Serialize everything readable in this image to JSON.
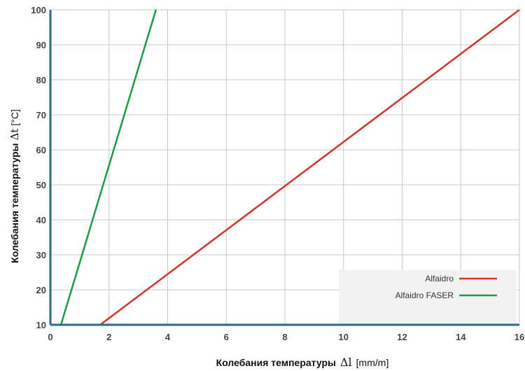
{
  "chart_data": {
    "type": "line",
    "xlabel": {
      "text": "Колебания температуры",
      "symbol": "Δl",
      "unit": "[mm/m]"
    },
    "ylabel": {
      "text": "Колебания температуры",
      "symbol": "Δt",
      "unit": "[°C]"
    },
    "xlim": [
      0,
      16
    ],
    "ylim": [
      10,
      100
    ],
    "x_ticks": [
      "0",
      "2",
      "4",
      "6",
      "8",
      "10",
      "12",
      "14",
      "16"
    ],
    "y_ticks": [
      "10",
      "20",
      "30",
      "40",
      "50",
      "60",
      "70",
      "80",
      "90",
      "100"
    ],
    "grid": true,
    "legend_position": "bottom-right",
    "series": [
      {
        "name": "Alfaidro",
        "color": "#d0342c",
        "x": [
          1.7,
          16
        ],
        "y": [
          10,
          100
        ]
      },
      {
        "name": "Alfaidro FASER",
        "color": "#1f9a47",
        "x": [
          0.36,
          3.6
        ],
        "y": [
          10,
          100
        ]
      }
    ]
  },
  "colors": {
    "axis": "#2e6b8a",
    "grid": "#c9c9c9",
    "legend_bg": "#f2f2f2"
  }
}
